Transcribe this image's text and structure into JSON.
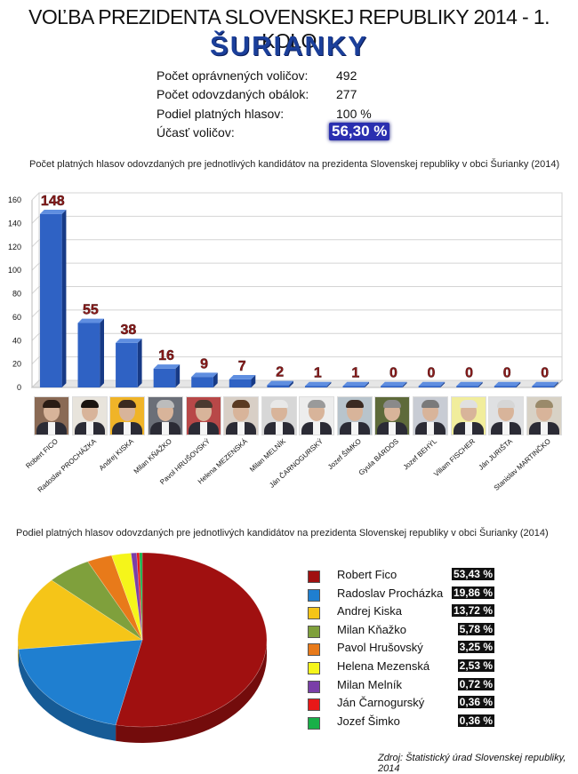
{
  "header": {
    "title": "VOĽBA PREZIDENTA SLOVENSKEJ REPUBLIKY 2014 - 1. KOLO",
    "village": "ŠURIANKY"
  },
  "stats": [
    {
      "label": "Počet oprávnených voličov:",
      "value": "492"
    },
    {
      "label": "Počet odovzdaných obálok:",
      "value": "277"
    },
    {
      "label": "Podiel platných hlasov:",
      "value": "100 %"
    },
    {
      "label": "Účasť voličov:",
      "value": "56,30 %"
    }
  ],
  "chart_data": [
    {
      "type": "bar",
      "title": "Počet platných hlasov odovzdaných pre jednotlivých kandidátov na prezidenta Slovenskej republiky v obci Šurianky (2014)",
      "categories": [
        "Robert FICO",
        "Radoslav PROCHÁZKA",
        "Andrej KISKA",
        "Milan KŇAŽKO",
        "Pavol HRUŠOVSKÝ",
        "Helena MEZENSKÁ",
        "Milan MELNÍK",
        "Ján ČARNOGURSKÝ",
        "Jozef ŠIMKO",
        "Gyula BÁRDOS",
        "Jozef BEHÝL",
        "Viliam FISCHER",
        "Ján JURIŠTA",
        "Stanislav MARTINČKO"
      ],
      "values": [
        148,
        55,
        38,
        16,
        9,
        7,
        2,
        1,
        1,
        0,
        0,
        0,
        0,
        0
      ],
      "yticks": [
        0,
        20,
        40,
        60,
        80,
        100,
        120,
        140,
        160
      ],
      "ylim": [
        0,
        160
      ],
      "grid": true,
      "colors": {
        "bar": "#2f62c4",
        "bar_dark": "#173a86",
        "label": "#8b1a1a"
      }
    },
    {
      "type": "pie",
      "title": "Podiel platných hlasov odovzdaných pre jednotlivých kandidátov na prezidenta Slovenskej republiky v obci Šurianky (2014)",
      "legend_position": "right",
      "slices": [
        {
          "name": "Robert Fico",
          "value": 53.43,
          "label": "53,43 %",
          "color": "#a01010"
        },
        {
          "name": "Radoslav Procházka",
          "value": 19.86,
          "label": "19,86 %",
          "color": "#1f7fd0"
        },
        {
          "name": "Andrej Kiska",
          "value": 13.72,
          "label": "13,72 %",
          "color": "#f5c518"
        },
        {
          "name": "Milan Kňažko",
          "value": 5.78,
          "label": "5,78 %",
          "color": "#7fa03c"
        },
        {
          "name": "Pavol Hrušovský",
          "value": 3.25,
          "label": "3,25 %",
          "color": "#e87a1a"
        },
        {
          "name": "Helena Mezenská",
          "value": 2.53,
          "label": "2,53 %",
          "color": "#f5f51a"
        },
        {
          "name": "Milan Melník",
          "value": 0.72,
          "label": "0,72 %",
          "color": "#7a3fa8"
        },
        {
          "name": "Ján Čarnogurský",
          "value": 0.36,
          "label": "0,36 %",
          "color": "#e81818"
        },
        {
          "name": "Jozef Šimko",
          "value": 0.36,
          "label": "0,36 %",
          "color": "#18b048"
        }
      ]
    }
  ],
  "photos": [
    {
      "bg": "#8a6a55",
      "hair": "#2a1c14"
    },
    {
      "bg": "#e8e4dc",
      "hair": "#1a1410"
    },
    {
      "bg": "#f0b428",
      "hair": "#3a2a20"
    },
    {
      "bg": "#6b6f78",
      "hair": "#bcbcbc"
    },
    {
      "bg": "#b84848",
      "hair": "#4a3a30"
    },
    {
      "bg": "#d8cfc6",
      "hair": "#5a3a22"
    },
    {
      "bg": "#d7d7d7",
      "hair": "#e8e8e8"
    },
    {
      "bg": "#ededed",
      "hair": "#9a9a9a"
    },
    {
      "bg": "#b8c4cc",
      "hair": "#3a2a22"
    },
    {
      "bg": "#5e6a3a",
      "hair": "#8a8a8a"
    },
    {
      "bg": "#c8ccd4",
      "hair": "#7a7a7a"
    },
    {
      "bg": "#f1ed9c",
      "hair": "#e0e0e0"
    },
    {
      "bg": "#dfe0e2",
      "hair": "#d6d6d6"
    },
    {
      "bg": "#d8d2c6",
      "hair": "#9a8a6a"
    }
  ],
  "source": "Zdroj: Štatistický úrad Slovenskej republiky, 2014"
}
